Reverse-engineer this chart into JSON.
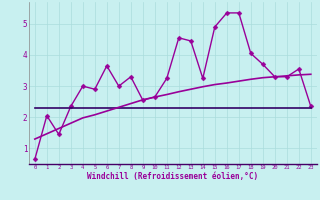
{
  "xlabel": "Windchill (Refroidissement éolien,°C)",
  "bg_color": "#c8f0f0",
  "line_color": "#990099",
  "flat_line_color": "#330066",
  "x_data": [
    0,
    1,
    2,
    3,
    4,
    5,
    6,
    7,
    8,
    9,
    10,
    11,
    12,
    13,
    14,
    15,
    16,
    17,
    18,
    19,
    20,
    21,
    22,
    23
  ],
  "y_main": [
    0.65,
    2.05,
    1.45,
    2.35,
    3.0,
    2.9,
    3.65,
    3.0,
    3.3,
    2.55,
    2.65,
    3.25,
    4.55,
    4.45,
    3.25,
    4.9,
    5.35,
    5.35,
    4.05,
    3.7,
    3.3,
    3.3,
    3.55,
    2.35
  ],
  "y_flat": [
    2.3,
    2.3,
    2.3,
    2.3,
    2.3,
    2.3,
    2.3,
    2.3,
    2.3,
    2.3,
    2.3,
    2.3,
    2.3,
    2.3,
    2.3,
    2.3,
    2.3,
    2.3,
    2.3,
    2.3,
    2.3,
    2.3,
    2.3,
    2.3
  ],
  "y_rising": [
    1.3,
    1.47,
    1.64,
    1.81,
    1.98,
    2.08,
    2.2,
    2.32,
    2.44,
    2.56,
    2.65,
    2.73,
    2.82,
    2.9,
    2.98,
    3.05,
    3.1,
    3.16,
    3.22,
    3.27,
    3.3,
    3.33,
    3.36,
    3.38
  ],
  "ylim": [
    0.5,
    5.7
  ],
  "xlim": [
    -0.5,
    23.5
  ],
  "yticks": [
    1,
    2,
    3,
    4,
    5
  ],
  "xticks": [
    0,
    1,
    2,
    3,
    4,
    5,
    6,
    7,
    8,
    9,
    10,
    11,
    12,
    13,
    14,
    15,
    16,
    17,
    18,
    19,
    20,
    21,
    22,
    23
  ],
  "grid_color": "#aadddd",
  "marker": "D",
  "markersize": 2.5,
  "linewidth": 1.0,
  "ref_linewidth": 1.2
}
